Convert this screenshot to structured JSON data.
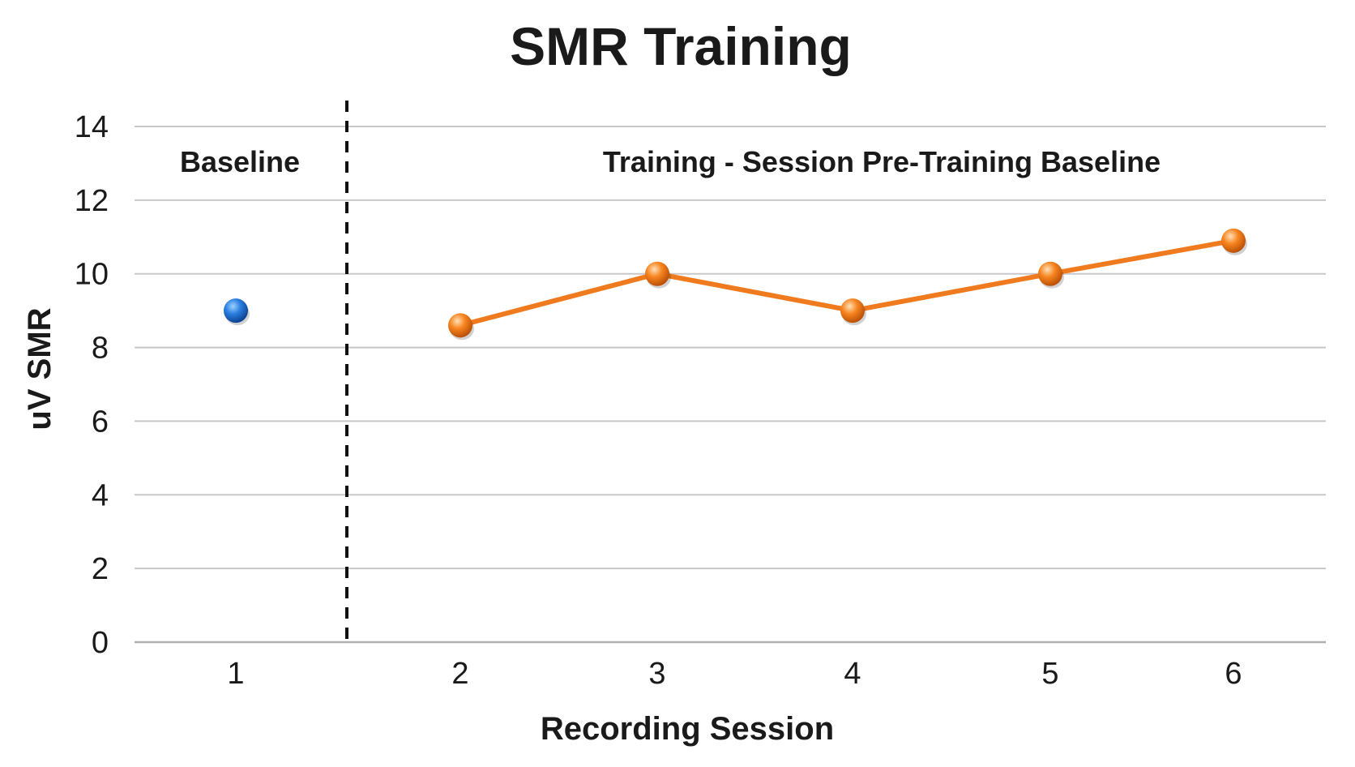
{
  "chart_data": {
    "type": "line",
    "title": "SMR Training",
    "xlabel": "Recording Session",
    "ylabel": "uV SMR",
    "ylim": [
      0,
      14
    ],
    "yticks": [
      0,
      2,
      4,
      6,
      8,
      10,
      12,
      14
    ],
    "xticks": [
      1,
      2,
      3,
      4,
      5,
      6
    ],
    "grid": true,
    "phase_divider_after_session": 1,
    "phases": [
      {
        "label": "Baseline"
      },
      {
        "label": "Training - Session Pre-Training Baseline"
      }
    ],
    "series": [
      {
        "phase": "baseline",
        "color": "#1f6fd1",
        "connected": false,
        "points": [
          {
            "x": 1,
            "y": 9.0
          }
        ]
      },
      {
        "phase": "training",
        "color": "#f07a1e",
        "connected": true,
        "points": [
          {
            "x": 2,
            "y": 8.6
          },
          {
            "x": 3,
            "y": 10.0
          },
          {
            "x": 4,
            "y": 9.0
          },
          {
            "x": 5,
            "y": 10.0
          },
          {
            "x": 6,
            "y": 10.9
          }
        ]
      }
    ]
  }
}
